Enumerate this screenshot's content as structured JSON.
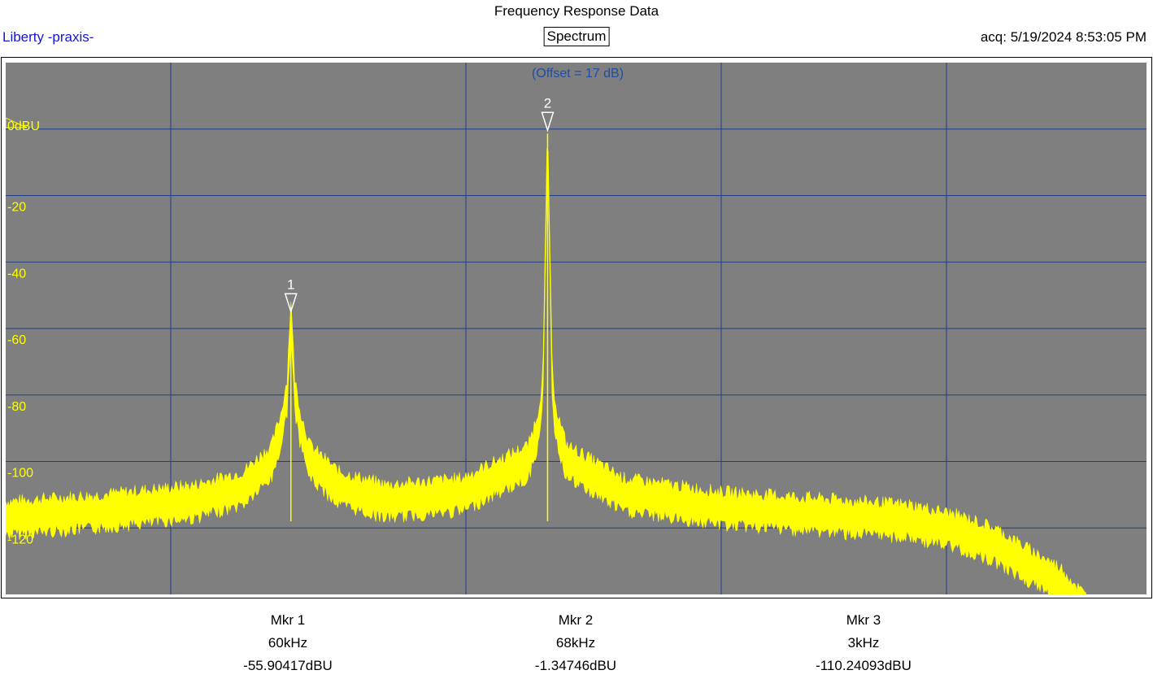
{
  "header": {
    "title": "Frequency Response Data",
    "brand": "Liberty -praxis-",
    "mode": "Spectrum",
    "acq": "acq: 5/19/2024 8:53:05 PM"
  },
  "colors": {
    "background": "#7f7f7f",
    "grid": "#1b3f8c",
    "trace": "#ffff00",
    "axis_text": "#ffff00",
    "offset_text": "#1e4ea8",
    "marker": "#ffffff"
  },
  "plot": {
    "offset_label": "(Offset = 17 dB)",
    "ref_label": "0dBU"
  },
  "chart_data": {
    "type": "line",
    "title": "",
    "ylim": [
      -140,
      20
    ],
    "xlim": [
      0,
      120
    ],
    "grid": true,
    "y_ticks": [
      -20,
      -40,
      -60,
      -80,
      -100,
      -120
    ],
    "y_tick_labels": [
      "-20",
      "-40",
      "-60",
      "-80",
      "-100",
      "-120"
    ],
    "series": [
      {
        "points": [
          [
            0,
            -117
          ],
          [
            10,
            -115
          ],
          [
            20,
            -112
          ],
          [
            25,
            -108
          ],
          [
            28,
            -100
          ],
          [
            29,
            -90
          ],
          [
            29.6,
            -80
          ],
          [
            30,
            -55.9
          ],
          [
            30.4,
            -80
          ],
          [
            31,
            -90
          ],
          [
            32,
            -100
          ],
          [
            35,
            -108
          ],
          [
            40,
            -112
          ],
          [
            48,
            -110
          ],
          [
            55,
            -100
          ],
          [
            56,
            -90
          ],
          [
            56.5,
            -80
          ],
          [
            57,
            -1.35
          ],
          [
            57.5,
            -80
          ],
          [
            58,
            -90
          ],
          [
            59,
            -100
          ],
          [
            65,
            -110
          ],
          [
            75,
            -114
          ],
          [
            85,
            -116
          ],
          [
            95,
            -118
          ],
          [
            100,
            -121
          ],
          [
            104,
            -125
          ],
          [
            108,
            -132
          ],
          [
            111,
            -137
          ],
          [
            115,
            -150
          ]
        ]
      }
    ],
    "markers": [
      {
        "id": "1",
        "x": 30,
        "y": -55.90417
      },
      {
        "id": "2",
        "x": 57,
        "y": -1.34746
      }
    ]
  },
  "readouts": [
    {
      "name": "Mkr 1",
      "freq": "60kHz",
      "level": "-55.90417dBU"
    },
    {
      "name": "Mkr 2",
      "freq": "68kHz",
      "level": "-1.34746dBU"
    },
    {
      "name": "Mkr 3",
      "freq": "3kHz",
      "level": "-110.24093dBU"
    }
  ]
}
